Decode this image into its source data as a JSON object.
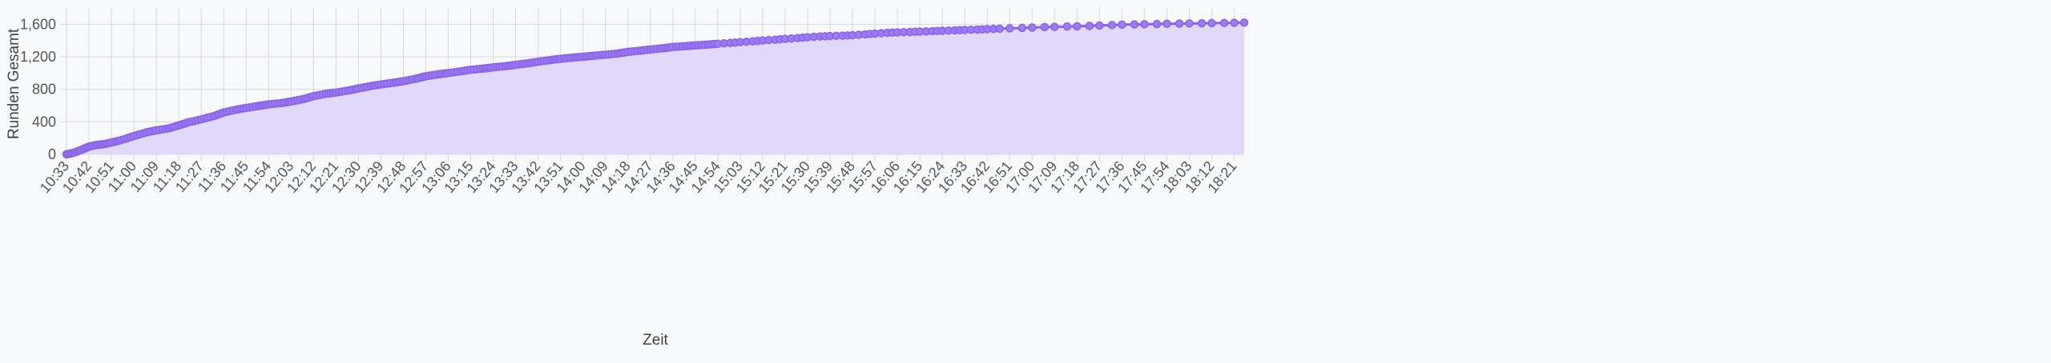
{
  "chart_data": {
    "type": "area",
    "title": "",
    "xlabel": "Zeit",
    "ylabel": "Runden Gesamt",
    "ylim": [
      0,
      1800
    ],
    "yticks": [
      0,
      400,
      800,
      1200,
      1600
    ],
    "ytick_labels": [
      "0",
      "400",
      "800",
      "1,200",
      "1,600"
    ],
    "xtick_labels": [
      "10:33",
      "10:42",
      "10:51",
      "11:00",
      "11:09",
      "11:18",
      "11:27",
      "11:36",
      "11:45",
      "11:54",
      "12:03",
      "12:12",
      "12:21",
      "12:30",
      "12:39",
      "12:48",
      "12:57",
      "13:06",
      "13:15",
      "13:24",
      "13:33",
      "13:42",
      "13:51",
      "14:00",
      "14:09",
      "14:18",
      "14:27",
      "14:36",
      "14:45",
      "14:54",
      "15:03",
      "15:12",
      "15:21",
      "15:30",
      "15:39",
      "15:48",
      "15:57",
      "16:06",
      "16:15",
      "16:24",
      "16:33",
      "16:42",
      "16:51",
      "17:00",
      "17:09",
      "17:18",
      "17:27",
      "17:36",
      "17:45",
      "17:54",
      "18:03",
      "18:12",
      "18:21"
    ],
    "x_start": "10:33",
    "x_end": "18:25",
    "grid": true,
    "legend": false,
    "series": [
      {
        "points": [
          [
            "10:33",
            0
          ],
          [
            "10:36",
            20
          ],
          [
            "10:39",
            55
          ],
          [
            "10:42",
            95
          ],
          [
            "10:45",
            115
          ],
          [
            "10:48",
            125
          ],
          [
            "10:51",
            145
          ],
          [
            "10:55",
            175
          ],
          [
            "11:00",
            225
          ],
          [
            "11:05",
            270
          ],
          [
            "11:09",
            295
          ],
          [
            "11:14",
            320
          ],
          [
            "11:18",
            355
          ],
          [
            "11:22",
            395
          ],
          [
            "11:27",
            430
          ],
          [
            "11:32",
            470
          ],
          [
            "11:36",
            515
          ],
          [
            "11:41",
            550
          ],
          [
            "11:45",
            570
          ],
          [
            "11:50",
            595
          ],
          [
            "11:54",
            615
          ],
          [
            "11:59",
            630
          ],
          [
            "12:03",
            650
          ],
          [
            "12:08",
            680
          ],
          [
            "12:12",
            715
          ],
          [
            "12:17",
            745
          ],
          [
            "12:21",
            760
          ],
          [
            "12:26",
            785
          ],
          [
            "12:30",
            810
          ],
          [
            "12:35",
            840
          ],
          [
            "12:39",
            860
          ],
          [
            "12:44",
            880
          ],
          [
            "12:48",
            900
          ],
          [
            "12:53",
            930
          ],
          [
            "12:57",
            960
          ],
          [
            "13:02",
            985
          ],
          [
            "13:06",
            1000
          ],
          [
            "13:11",
            1020
          ],
          [
            "13:15",
            1040
          ],
          [
            "13:20",
            1055
          ],
          [
            "13:24",
            1070
          ],
          [
            "13:29",
            1085
          ],
          [
            "13:33",
            1100
          ],
          [
            "13:38",
            1120
          ],
          [
            "13:42",
            1140
          ],
          [
            "13:47",
            1160
          ],
          [
            "13:51",
            1175
          ],
          [
            "13:56",
            1190
          ],
          [
            "14:00",
            1200
          ],
          [
            "14:05",
            1215
          ],
          [
            "14:09",
            1225
          ],
          [
            "14:14",
            1240
          ],
          [
            "14:18",
            1260
          ],
          [
            "14:23",
            1275
          ],
          [
            "14:27",
            1290
          ],
          [
            "14:32",
            1305
          ],
          [
            "14:36",
            1320
          ],
          [
            "14:41",
            1330
          ],
          [
            "14:45",
            1340
          ],
          [
            "14:50",
            1350
          ],
          [
            "14:54",
            1360
          ],
          [
            "14:59",
            1370
          ],
          [
            "15:03",
            1380
          ],
          [
            "15:08",
            1390
          ],
          [
            "15:12",
            1400
          ],
          [
            "15:17",
            1410
          ],
          [
            "15:21",
            1420
          ],
          [
            "15:26",
            1430
          ],
          [
            "15:30",
            1440
          ],
          [
            "15:35",
            1450
          ],
          [
            "15:39",
            1455
          ],
          [
            "15:44",
            1460
          ],
          [
            "15:48",
            1465
          ],
          [
            "15:53",
            1475
          ],
          [
            "15:57",
            1485
          ],
          [
            "16:02",
            1495
          ],
          [
            "16:06",
            1500
          ],
          [
            "16:11",
            1505
          ],
          [
            "16:15",
            1510
          ],
          [
            "16:20",
            1515
          ],
          [
            "16:24",
            1520
          ],
          [
            "16:29",
            1525
          ],
          [
            "16:33",
            1530
          ],
          [
            "16:38",
            1535
          ],
          [
            "16:42",
            1540
          ],
          [
            "16:47",
            1545
          ],
          [
            "16:51",
            1550
          ],
          [
            "16:56",
            1555
          ],
          [
            "17:00",
            1560
          ],
          [
            "17:05",
            1565
          ],
          [
            "17:09",
            1568
          ],
          [
            "17:14",
            1572
          ],
          [
            "17:18",
            1575
          ],
          [
            "17:23",
            1580
          ],
          [
            "17:27",
            1585
          ],
          [
            "17:32",
            1590
          ],
          [
            "17:36",
            1595
          ],
          [
            "17:41",
            1598
          ],
          [
            "17:45",
            1600
          ],
          [
            "17:50",
            1603
          ],
          [
            "17:54",
            1606
          ],
          [
            "17:59",
            1608
          ],
          [
            "18:03",
            1610
          ],
          [
            "18:08",
            1612
          ],
          [
            "18:12",
            1614
          ],
          [
            "18:17",
            1616
          ],
          [
            "18:21",
            1618
          ],
          [
            "18:25",
            1620
          ]
        ]
      }
    ],
    "colors": {
      "line": "#8a63e8",
      "point_fill": "#9b7cf0",
      "area_fill": "#e0d9f9",
      "grid": "#d8d8de",
      "axis_text": "#555555",
      "label_text": "#444444",
      "background": "#f8f9fa"
    }
  }
}
